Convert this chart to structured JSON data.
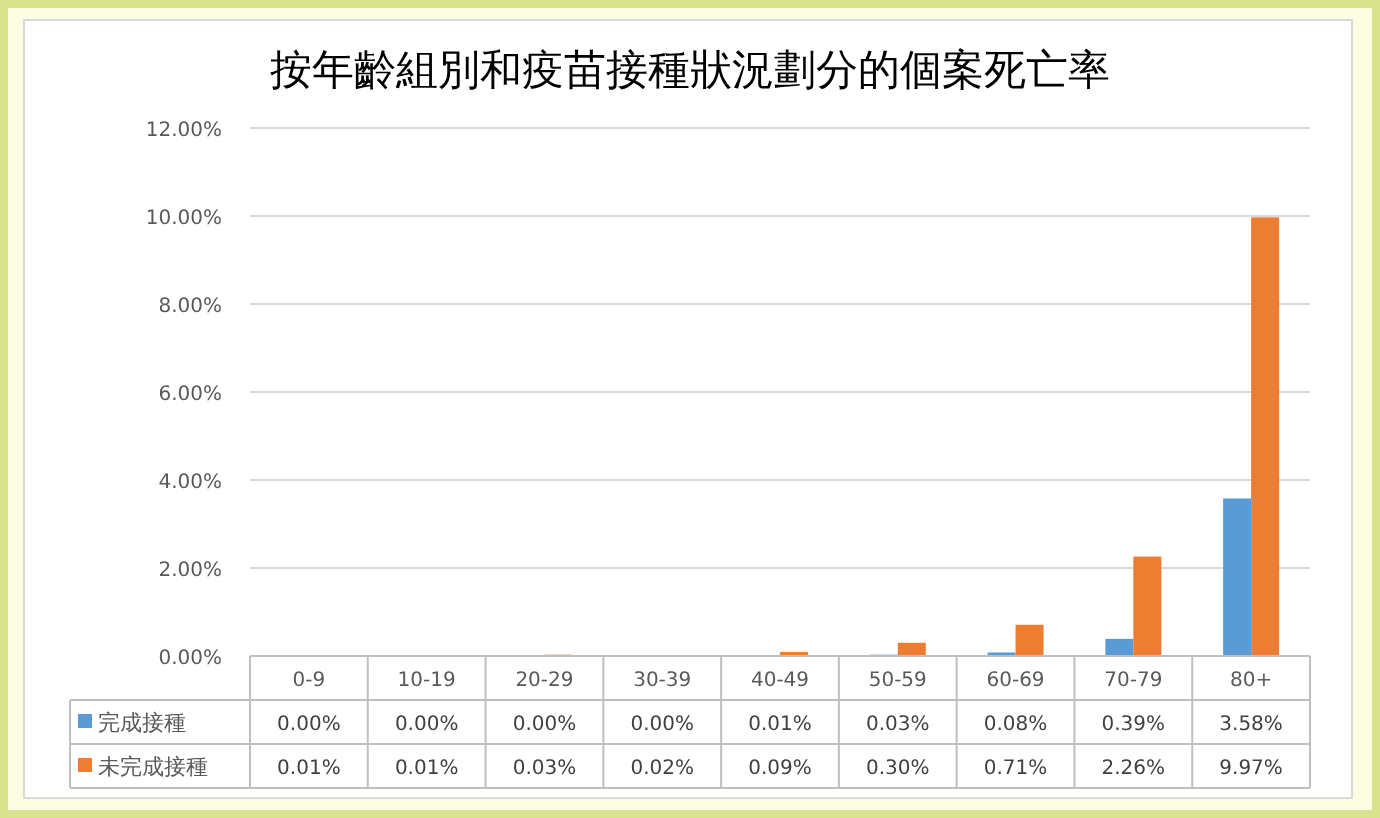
{
  "chart_data": {
    "type": "bar",
    "title": "按年齡組別和疫苗接種狀況劃分的個案死亡率",
    "categories": [
      "0-9",
      "10-19",
      "20-29",
      "30-39",
      "40-49",
      "50-59",
      "60-69",
      "70-79",
      "80+"
    ],
    "series": [
      {
        "name": "完成接種",
        "color": "#5b9bd5",
        "values": [
          0.0,
          0.0,
          0.0,
          0.0,
          0.01,
          0.03,
          0.08,
          0.39,
          3.58
        ],
        "value_labels": [
          "0.00%",
          "0.00%",
          "0.00%",
          "0.00%",
          "0.01%",
          "0.03%",
          "0.08%",
          "0.39%",
          "3.58%"
        ]
      },
      {
        "name": "未完成接種",
        "color": "#ed7d31",
        "values": [
          0.01,
          0.01,
          0.03,
          0.02,
          0.09,
          0.3,
          0.71,
          2.26,
          9.97
        ],
        "value_labels": [
          "0.01%",
          "0.01%",
          "0.03%",
          "0.02%",
          "0.09%",
          "0.30%",
          "0.71%",
          "2.26%",
          "9.97%"
        ]
      }
    ],
    "ylim": [
      0,
      12
    ],
    "yticks": [
      {
        "value": 0,
        "label": "0.00%"
      },
      {
        "value": 2,
        "label": "2.00%"
      },
      {
        "value": 4,
        "label": "4.00%"
      },
      {
        "value": 6,
        "label": "6.00%"
      },
      {
        "value": 8,
        "label": "8.00%"
      },
      {
        "value": 10,
        "label": "10.00%"
      },
      {
        "value": 12,
        "label": "12.00%"
      }
    ],
    "grid": "y",
    "legend": "bottom"
  }
}
